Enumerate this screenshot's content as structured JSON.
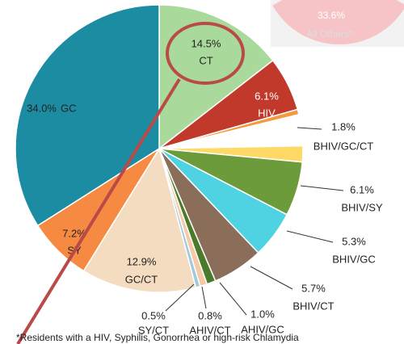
{
  "chart_data": {
    "type": "pie",
    "categories": [
      "CT",
      "HIV",
      null,
      null,
      null,
      "BHIV/GC/CT",
      "BHIV/SY",
      "BHIV/GC",
      "BHIV/CT",
      "AHIV/GC",
      "AHIV/CT",
      "SY/CT",
      "GC/CT",
      "SY",
      "GC"
    ],
    "values": [
      14.5,
      6.1,
      0.6,
      1.5,
      2.0,
      1.8,
      6.1,
      5.3,
      5.7,
      1.0,
      0.8,
      0.5,
      12.9,
      7.2,
      34.0
    ],
    "value_labels": [
      "14.5%",
      "6.1%",
      null,
      null,
      null,
      "1.8%",
      "6.1%",
      "5.3%",
      "5.7%",
      "1.0%",
      "0.8%",
      "0.5%",
      "12.9%",
      "7.2%",
      "34.0%"
    ],
    "colors": [
      "#a9d99b",
      "#c0392b",
      "#f39a3c",
      "#ffffff",
      "#ffffff",
      "#ffd966",
      "#6b9b3a",
      "#4fd3e3",
      "#8a6e5a",
      "#4a7a2a",
      "#f6caa5",
      "#9ecae1",
      "#f4dcc0",
      "#f68a42",
      "#1b8ca1"
    ],
    "inset": {
      "value": 33.6,
      "value_label": "33.6%",
      "label": "All Others*"
    },
    "footnote": "*Residents with a HIV, Syphilis, Gonorrhea or high-risk Chlamydia"
  }
}
